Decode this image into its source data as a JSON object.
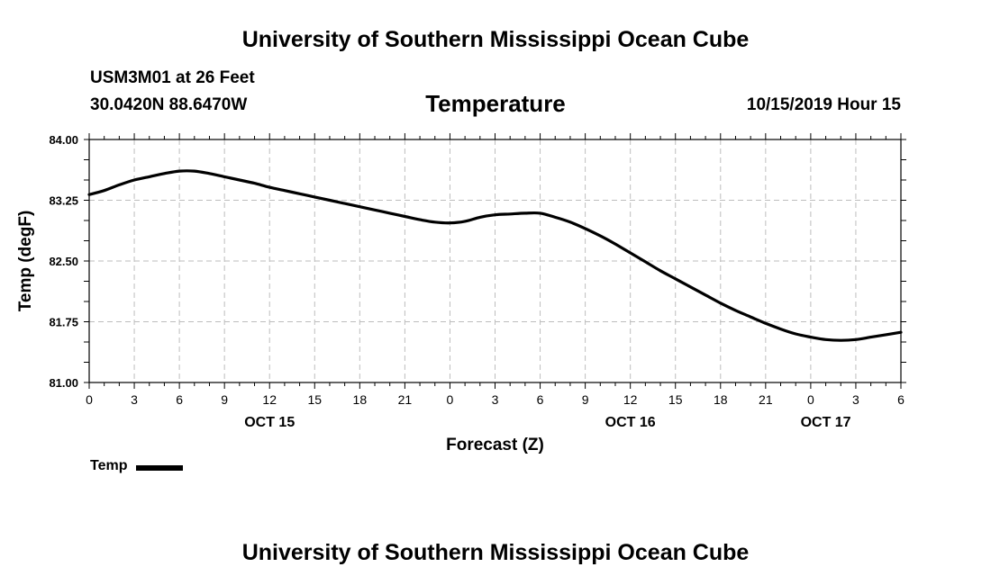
{
  "header": {
    "org_title": "University of Southern Mississippi Ocean Cube",
    "station": "USM3M01 at 26 Feet",
    "coords": "30.0420N 88.6470W",
    "valid_time": "10/15/2019 Hour 15"
  },
  "footer": {
    "org_title": "University of Southern Mississippi Ocean Cube"
  },
  "legend": {
    "label": "Temp"
  },
  "chart_data": {
    "type": "line",
    "title": "Temperature",
    "xlabel": "Forecast (Z)",
    "ylabel": "Temp (degF)",
    "ylim": [
      81.0,
      84.0
    ],
    "xlim": [
      0,
      54
    ],
    "grid": true,
    "legend_position": "bottom-left",
    "y_ticks": [
      "84.00",
      "83.25",
      "82.50",
      "81.75",
      "81.00"
    ],
    "y_tick_values": [
      84.0,
      83.25,
      82.5,
      81.75,
      81.0
    ],
    "x_ticks": [
      "0",
      "3",
      "6",
      "9",
      "12",
      "15",
      "18",
      "21",
      "0",
      "3",
      "6",
      "9",
      "12",
      "15",
      "18",
      "21",
      "0",
      "3",
      "6"
    ],
    "x_tick_hours": [
      0,
      3,
      6,
      9,
      12,
      15,
      18,
      21,
      24,
      27,
      30,
      33,
      36,
      39,
      42,
      45,
      48,
      51,
      54
    ],
    "day_labels": [
      {
        "label": "OCT 15",
        "hour": 12
      },
      {
        "label": "OCT 16",
        "hour": 36
      },
      {
        "label": "OCT 17",
        "hour": 49
      }
    ],
    "series": [
      {
        "name": "Temp",
        "x": [
          0,
          1,
          2,
          3,
          4,
          5,
          6,
          7,
          8,
          9,
          10,
          11,
          12,
          13,
          14,
          15,
          16,
          17,
          18,
          19,
          20,
          21,
          22,
          23,
          24,
          25,
          26,
          27,
          28,
          29,
          30,
          31,
          32,
          33,
          34,
          35,
          36,
          37,
          38,
          39,
          40,
          41,
          42,
          43,
          44,
          45,
          46,
          47,
          48,
          49,
          50,
          51,
          52,
          53,
          54
        ],
        "values": [
          83.32,
          83.37,
          83.44,
          83.5,
          83.54,
          83.58,
          83.61,
          83.61,
          83.58,
          83.54,
          83.5,
          83.46,
          83.41,
          83.37,
          83.33,
          83.29,
          83.25,
          83.21,
          83.17,
          83.13,
          83.09,
          83.05,
          83.01,
          82.98,
          82.97,
          82.99,
          83.04,
          83.07,
          83.08,
          83.09,
          83.09,
          83.04,
          82.98,
          82.9,
          82.81,
          82.71,
          82.6,
          82.49,
          82.38,
          82.28,
          82.18,
          82.08,
          81.98,
          81.89,
          81.81,
          81.73,
          81.66,
          81.6,
          81.56,
          81.53,
          81.52,
          81.53,
          81.56,
          81.59,
          81.62
        ]
      }
    ]
  }
}
